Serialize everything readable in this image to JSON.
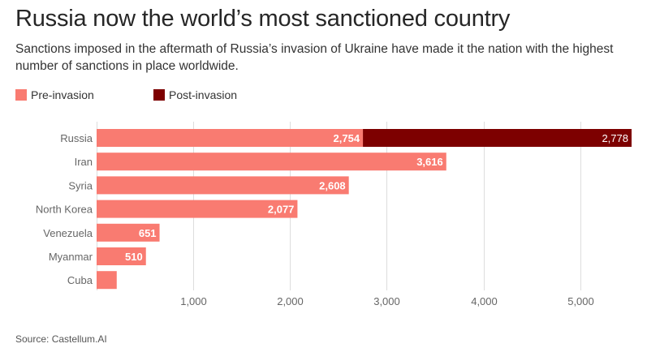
{
  "title": "Russia now the world’s most sanctioned country",
  "subtitle": "Sanctions imposed in the aftermath of Russia’s invasion of Ukraine have made it the nation with the highest number of sanctions in place worldwide.",
  "source": "Source: Castellum.AI",
  "colors": {
    "pre": "#f97b71",
    "post": "#7d0000",
    "grid": "#dddddd",
    "axis_text": "#666666"
  },
  "chart_data": {
    "type": "bar",
    "orientation": "horizontal",
    "stacked": true,
    "categories": [
      "Russia",
      "Iran",
      "Syria",
      "North Korea",
      "Venezuela",
      "Myanmar",
      "Cuba"
    ],
    "series": [
      {
        "name": "Pre-invasion",
        "values": [
          2754,
          3616,
          2608,
          2077,
          651,
          510,
          208
        ],
        "labels": [
          "2,754",
          "3,616",
          "2,608",
          "2,077",
          "651",
          "510",
          ""
        ]
      },
      {
        "name": "Post-invasion",
        "values": [
          2778,
          0,
          0,
          0,
          0,
          0,
          0
        ],
        "labels": [
          "2,778",
          "",
          "",
          "",
          "",
          "",
          ""
        ]
      }
    ],
    "xlim": [
      0,
      5532
    ],
    "xticks": [
      1000,
      2000,
      3000,
      4000,
      5000
    ],
    "xtick_labels": [
      "1,000",
      "2,000",
      "3,000",
      "4,000",
      "5,000"
    ],
    "grid": true,
    "legend": "top-left"
  }
}
